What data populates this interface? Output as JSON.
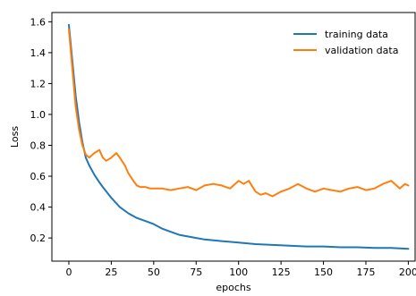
{
  "chart_data": {
    "type": "line",
    "title": "",
    "xlabel": "epochs",
    "ylabel": "Loss",
    "xlim": [
      -10,
      204
    ],
    "ylim": [
      0.05,
      1.66
    ],
    "xticks": [
      0,
      25,
      50,
      75,
      100,
      125,
      150,
      175,
      200
    ],
    "xtick_labels": [
      "0",
      "25",
      "50",
      "75",
      "100",
      "125",
      "150",
      "175",
      "200"
    ],
    "yticks": [
      0.2,
      0.4,
      0.6,
      0.8,
      1.0,
      1.2,
      1.4,
      1.6
    ],
    "ytick_labels": [
      "0.2",
      "0.4",
      "0.6",
      "0.8",
      "1.0",
      "1.2",
      "1.4",
      "1.6"
    ],
    "grid": false,
    "legend_position": "top-right",
    "series": [
      {
        "name": "training data",
        "color": "#1f77b4",
        "x": [
          0,
          2,
          4,
          6,
          8,
          10,
          12,
          15,
          18,
          20,
          25,
          30,
          35,
          40,
          45,
          50,
          55,
          60,
          65,
          70,
          75,
          80,
          90,
          100,
          110,
          120,
          130,
          140,
          150,
          160,
          170,
          180,
          190,
          200
        ],
        "y": [
          1.58,
          1.35,
          1.12,
          0.95,
          0.82,
          0.72,
          0.67,
          0.61,
          0.56,
          0.53,
          0.46,
          0.4,
          0.36,
          0.33,
          0.31,
          0.29,
          0.26,
          0.24,
          0.22,
          0.21,
          0.2,
          0.19,
          0.18,
          0.17,
          0.16,
          0.155,
          0.15,
          0.145,
          0.145,
          0.14,
          0.14,
          0.135,
          0.135,
          0.13
        ]
      },
      {
        "name": "validation data",
        "color": "#ff7f0e",
        "x": [
          0,
          2,
          4,
          6,
          8,
          10,
          12,
          15,
          18,
          20,
          22,
          25,
          28,
          30,
          33,
          35,
          38,
          40,
          42,
          45,
          48,
          50,
          55,
          60,
          65,
          70,
          75,
          80,
          85,
          90,
          95,
          100,
          103,
          106,
          110,
          113,
          116,
          120,
          125,
          130,
          135,
          140,
          145,
          150,
          155,
          160,
          165,
          170,
          175,
          180,
          185,
          190,
          195,
          198,
          200
        ],
        "y": [
          1.55,
          1.3,
          1.05,
          0.9,
          0.8,
          0.74,
          0.72,
          0.75,
          0.77,
          0.72,
          0.7,
          0.72,
          0.75,
          0.72,
          0.67,
          0.62,
          0.57,
          0.54,
          0.53,
          0.53,
          0.52,
          0.52,
          0.52,
          0.51,
          0.52,
          0.53,
          0.51,
          0.54,
          0.55,
          0.54,
          0.52,
          0.57,
          0.55,
          0.57,
          0.5,
          0.48,
          0.49,
          0.47,
          0.5,
          0.52,
          0.55,
          0.52,
          0.5,
          0.52,
          0.51,
          0.5,
          0.52,
          0.53,
          0.51,
          0.52,
          0.55,
          0.57,
          0.52,
          0.55,
          0.54
        ]
      }
    ]
  }
}
